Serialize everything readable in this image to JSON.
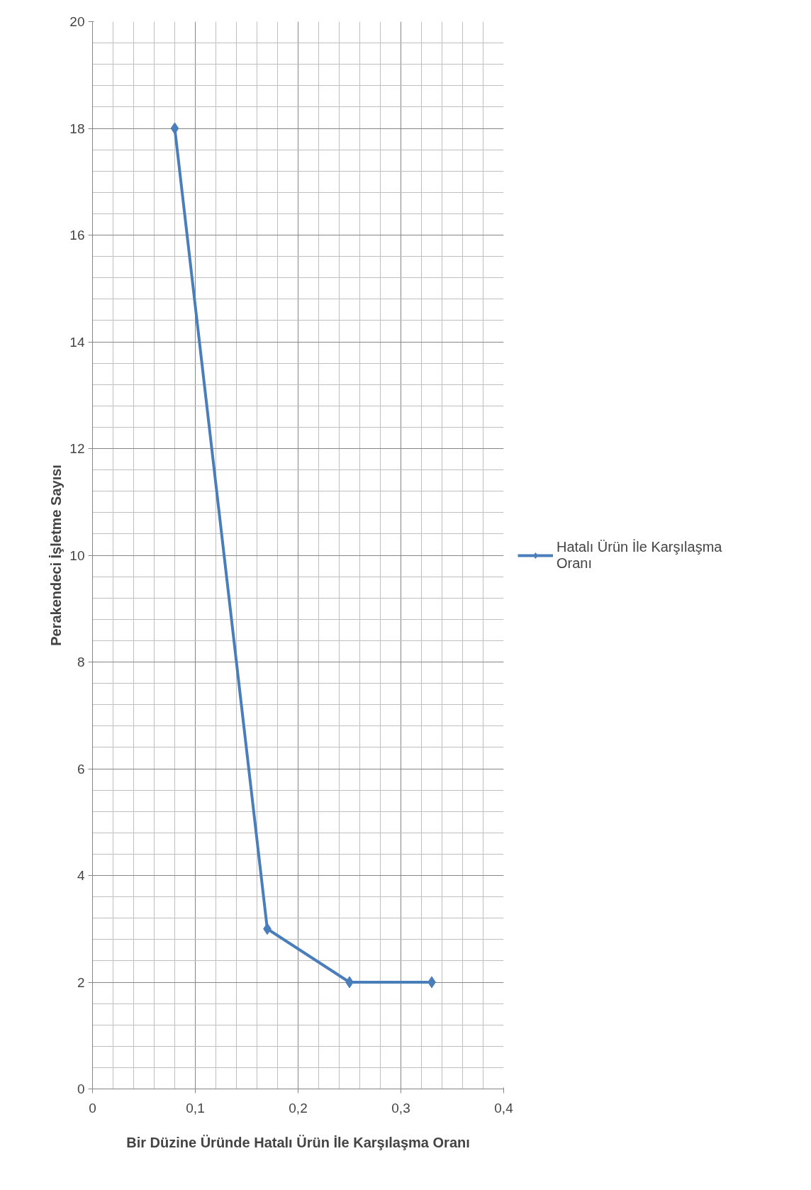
{
  "chart_data": {
    "type": "line",
    "xlabel": "Bir Düzine Üründe Hatalı Ürün İle Karşılaşma Oranı",
    "ylabel": "Perakendeci İşletme Sayısı",
    "x": [
      0.08,
      0.17,
      0.25,
      0.33
    ],
    "series": [
      {
        "name": "Hatalı Ürün İle Karşılaşma Oranı",
        "color": "#4a7ebb",
        "values": [
          18,
          3,
          2,
          2
        ]
      }
    ],
    "xlim": [
      0,
      0.4
    ],
    "ylim": [
      0,
      20
    ],
    "xticks": [
      0,
      {
        "value": 0.1,
        "label": "0,1"
      },
      {
        "value": 0.2,
        "label": "0,2"
      },
      {
        "value": 0.3,
        "label": "0,3"
      },
      {
        "value": 0.4,
        "label": "0,4"
      }
    ],
    "yticks": [
      0,
      2,
      4,
      6,
      8,
      10,
      12,
      14,
      16,
      18,
      20
    ],
    "grid": true,
    "legend": "right",
    "marker": "diamond",
    "line_style": "solid"
  }
}
